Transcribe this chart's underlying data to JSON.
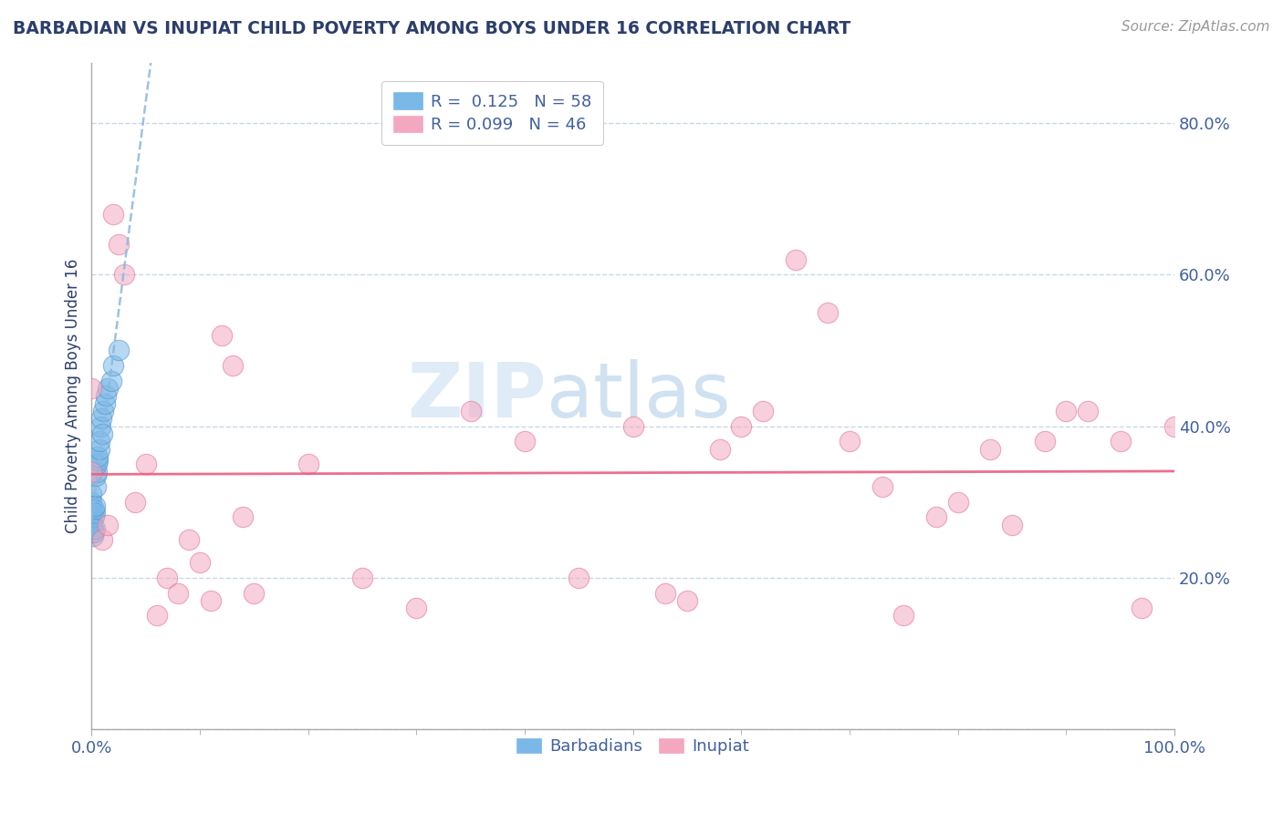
{
  "title": "BARBADIAN VS INUPIAT CHILD POVERTY AMONG BOYS UNDER 16 CORRELATION CHART",
  "source": "Source: ZipAtlas.com",
  "ylabel": "Child Poverty Among Boys Under 16",
  "watermark_zip": "ZIP",
  "watermark_atlas": "atlas",
  "barbadian_R": 0.125,
  "inupiat_R": 0.099,
  "barbadian_N": 58,
  "inupiat_N": 46,
  "barbadian_x": [
    0.0,
    0.0,
    0.0,
    0.0,
    0.0,
    0.0,
    0.0,
    0.0,
    0.0,
    0.0,
    0.0,
    0.0,
    0.0,
    0.0,
    0.0,
    0.0,
    0.0,
    0.0,
    0.0,
    0.0,
    0.0,
    0.0,
    0.0,
    0.0,
    0.0,
    0.0,
    0.0,
    0.0,
    0.0,
    0.0,
    0.0,
    0.001,
    0.001,
    0.001,
    0.002,
    0.002,
    0.002,
    0.003,
    0.003,
    0.003,
    0.004,
    0.004,
    0.005,
    0.005,
    0.006,
    0.006,
    0.007,
    0.007,
    0.008,
    0.009,
    0.01,
    0.011,
    0.012,
    0.013,
    0.015,
    0.018,
    0.02,
    0.025
  ],
  "barbadian_y": [
    0.27,
    0.27,
    0.27,
    0.27,
    0.27,
    0.27,
    0.27,
    0.27,
    0.27,
    0.27,
    0.27,
    0.27,
    0.27,
    0.27,
    0.27,
    0.27,
    0.271,
    0.272,
    0.273,
    0.274,
    0.275,
    0.276,
    0.277,
    0.278,
    0.279,
    0.28,
    0.285,
    0.29,
    0.295,
    0.3,
    0.31,
    0.26,
    0.265,
    0.255,
    0.28,
    0.29,
    0.26,
    0.285,
    0.295,
    0.265,
    0.32,
    0.335,
    0.34,
    0.35,
    0.355,
    0.36,
    0.37,
    0.38,
    0.4,
    0.41,
    0.39,
    0.42,
    0.43,
    0.44,
    0.45,
    0.46,
    0.48,
    0.5
  ],
  "inupiat_x": [
    0.0,
    0.0,
    0.01,
    0.015,
    0.02,
    0.025,
    0.03,
    0.04,
    0.05,
    0.06,
    0.07,
    0.08,
    0.09,
    0.1,
    0.11,
    0.12,
    0.13,
    0.14,
    0.15,
    0.2,
    0.25,
    0.3,
    0.35,
    0.4,
    0.45,
    0.5,
    0.53,
    0.55,
    0.58,
    0.6,
    0.62,
    0.65,
    0.68,
    0.7,
    0.73,
    0.75,
    0.78,
    0.8,
    0.83,
    0.85,
    0.88,
    0.9,
    0.92,
    0.95,
    0.97,
    1.0
  ],
  "inupiat_y": [
    0.34,
    0.45,
    0.25,
    0.27,
    0.68,
    0.64,
    0.6,
    0.3,
    0.35,
    0.15,
    0.2,
    0.18,
    0.25,
    0.22,
    0.17,
    0.52,
    0.48,
    0.28,
    0.18,
    0.35,
    0.2,
    0.16,
    0.42,
    0.38,
    0.2,
    0.4,
    0.18,
    0.17,
    0.37,
    0.4,
    0.42,
    0.62,
    0.55,
    0.38,
    0.32,
    0.15,
    0.28,
    0.3,
    0.37,
    0.27,
    0.38,
    0.42,
    0.42,
    0.38,
    0.16,
    0.4
  ],
  "blue_dot_color": "#7ab8e8",
  "blue_dot_edge": "#5090c8",
  "pink_dot_color": "#f4a8c0",
  "pink_dot_edge": "#e07090",
  "blue_line_color": "#8ab8e0",
  "pink_line_color": "#e86080",
  "title_color": "#2c3e6b",
  "label_color": "#4060a0",
  "grid_color": "#c8d8e8",
  "background_color": "#ffffff",
  "xlim": [
    0.0,
    1.0
  ],
  "ylim": [
    0.0,
    0.88
  ],
  "yticks": [
    0.0,
    0.2,
    0.4,
    0.6,
    0.8
  ],
  "ytick_labels": [
    "",
    "20.0%",
    "40.0%",
    "60.0%",
    "80.0%"
  ]
}
